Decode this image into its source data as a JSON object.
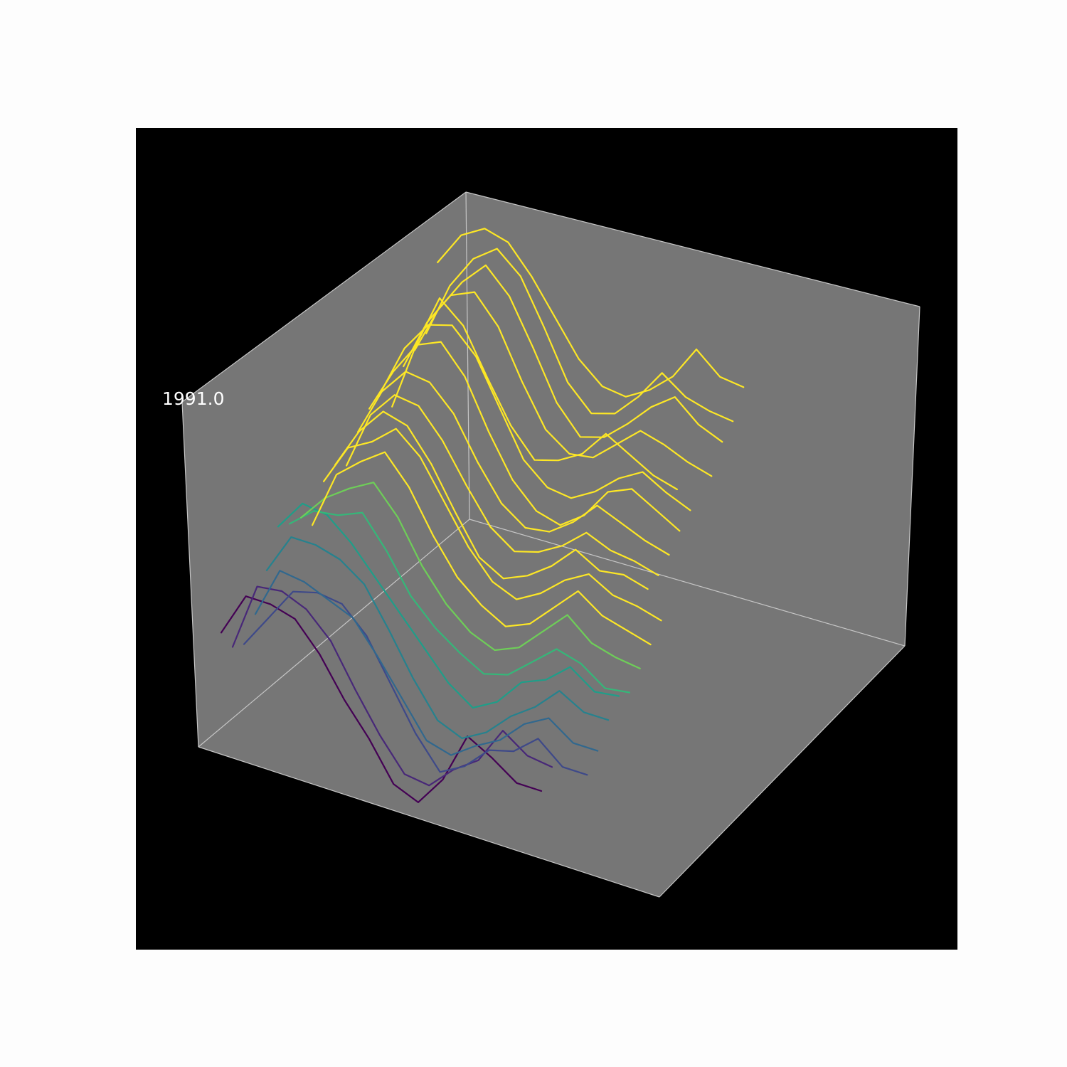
{
  "chart_data": {
    "type": "line",
    "title": "",
    "xlabel": "",
    "ylabel": "",
    "zlabel": "",
    "grid": false,
    "axes_visible": false,
    "colors": {
      "figure_background": "#fdfdfd",
      "axes_background": "#000000",
      "pane": "#767676",
      "pane_edges": "#c6c6c6",
      "label": "#ffffff"
    },
    "annotation": {
      "text": "1991.0"
    },
    "colormap": "viridis",
    "series": [
      {
        "color": "#440154",
        "values": [
          0.31,
          0.44,
          0.44,
          0.42,
          0.34,
          0.23,
          0.14,
          0.03,
          0.0,
          0.09,
          0.24,
          0.2,
          0.15,
          0.15
        ]
      },
      {
        "color": "#482878",
        "values": [
          0.24,
          0.44,
          0.45,
          0.42,
          0.35,
          0.23,
          0.12,
          0.03,
          0.02,
          0.09,
          0.14,
          0.25,
          0.2,
          0.19
        ]
      },
      {
        "color": "#3e4989",
        "values": [
          0.22,
          0.32,
          0.42,
          0.44,
          0.43,
          0.36,
          0.24,
          0.12,
          0.03,
          0.07,
          0.14,
          0.16,
          0.22,
          0.16,
          0.16
        ]
      },
      {
        "color": "#31688e",
        "values": [
          0.28,
          0.43,
          0.42,
          0.39,
          0.36,
          0.27,
          0.17,
          0.07,
          0.05,
          0.1,
          0.14,
          0.21,
          0.25,
          0.2,
          0.2
        ]
      },
      {
        "color": "#26828e",
        "values": [
          0.38,
          0.5,
          0.5,
          0.48,
          0.43,
          0.32,
          0.2,
          0.1,
          0.07,
          0.11,
          0.18,
          0.23,
          0.3,
          0.26,
          0.26
        ]
      },
      {
        "color": "#1f9e89",
        "values": [
          0.48,
          0.57,
          0.56,
          0.5,
          0.42,
          0.34,
          0.26,
          0.18,
          0.13,
          0.17,
          0.25,
          0.28,
          0.34,
          0.29,
          0.3
        ]
      },
      {
        "color": "#35b779",
        "values": [
          0.46,
          0.52,
          0.53,
          0.56,
          0.47,
          0.36,
          0.29,
          0.24,
          0.2,
          0.22,
          0.28,
          0.34,
          0.32,
          0.27,
          0.28
        ]
      },
      {
        "color": "#6ece58",
        "values": [
          0.45,
          0.53,
          0.58,
          0.62,
          0.54,
          0.42,
          0.33,
          0.27,
          0.24,
          0.27,
          0.34,
          0.41,
          0.35,
          0.33,
          0.32
        ]
      },
      {
        "color": "#fde725",
        "values": [
          0.4,
          0.57,
          0.63,
          0.68,
          0.6,
          0.48,
          0.38,
          0.32,
          0.28,
          0.31,
          0.38,
          0.45,
          0.4,
          0.38,
          0.36
        ]
      },
      {
        "color": "#fde725",
        "values": [
          0.5,
          0.62,
          0.66,
          0.72,
          0.66,
          0.55,
          0.44,
          0.36,
          0.33,
          0.37,
          0.43,
          0.47,
          0.43,
          0.42,
          0.4
        ]
      },
      {
        "color": "#fde725",
        "values": [
          0.52,
          0.64,
          0.72,
          0.7,
          0.61,
          0.49,
          0.38,
          0.34,
          0.37,
          0.42,
          0.49,
          0.45,
          0.46,
          0.44
        ]
      },
      {
        "color": "#fde725",
        "values": [
          0.49,
          0.66,
          0.74,
          0.73,
          0.65,
          0.54,
          0.44,
          0.39,
          0.41,
          0.45,
          0.51,
          0.48,
          0.47,
          0.45
        ]
      },
      {
        "color": "#fde725",
        "values": [
          0.56,
          0.7,
          0.78,
          0.77,
          0.7,
          0.58,
          0.48,
          0.43,
          0.44,
          0.49,
          0.56,
          0.53,
          0.5,
          0.48
        ]
      },
      {
        "color": "#fde725",
        "values": [
          0.6,
          0.73,
          0.83,
          0.86,
          0.78,
          0.64,
          0.52,
          0.45,
          0.43,
          0.48,
          0.57,
          0.6,
          0.56,
          0.52
        ]
      },
      {
        "color": "#fde725",
        "values": [
          0.62,
          0.77,
          0.86,
          0.88,
          0.81,
          0.68,
          0.55,
          0.49,
          0.48,
          0.52,
          0.58,
          0.62,
          0.58,
          0.55
        ]
      },
      {
        "color": "#fde725",
        "values": [
          0.55,
          0.75,
          0.91,
          0.85,
          0.72,
          0.6,
          0.52,
          0.54,
          0.58,
          0.66,
          0.62,
          0.58,
          0.56
        ]
      },
      {
        "color": "#fde725",
        "values": [
          0.64,
          0.79,
          0.89,
          0.92,
          0.84,
          0.7,
          0.58,
          0.53,
          0.54,
          0.6,
          0.66,
          0.64,
          0.61,
          0.59
        ]
      },
      {
        "color": "#fde725",
        "values": [
          0.66,
          0.8,
          0.9,
          0.97,
          0.9,
          0.77,
          0.63,
          0.55,
          0.57,
          0.63,
          0.7,
          0.75,
          0.69,
          0.66
        ]
      },
      {
        "color": "#fde725",
        "values": [
          0.68,
          0.84,
          0.94,
          0.99,
          0.93,
          0.8,
          0.66,
          0.59,
          0.61,
          0.68,
          0.77,
          0.72,
          0.7,
          0.69
        ]
      },
      {
        "color": "#fde725",
        "values": [
          0.86,
          0.96,
          1.0,
          0.98,
          0.9,
          0.8,
          0.7,
          0.64,
          0.63,
          0.67,
          0.73,
          0.83,
          0.77,
          0.76
        ]
      }
    ]
  }
}
